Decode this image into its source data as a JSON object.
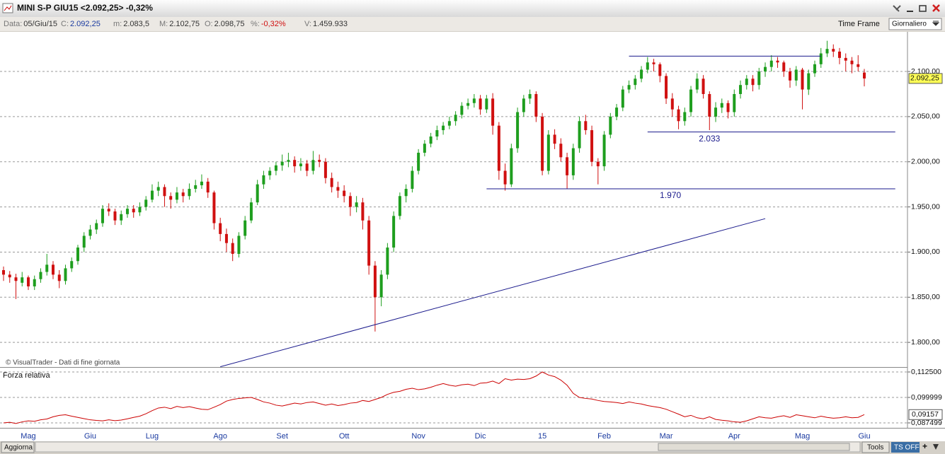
{
  "window": {
    "title": "MINI S-P GIU15 <2.092,25> -0,32%",
    "info": [
      {
        "label": "Data:",
        "value": "05/Giu/15"
      },
      {
        "label": "C:",
        "value": "2.092,25"
      },
      {
        "label": "m:",
        "value": "2.083,5"
      },
      {
        "label": "M:",
        "value": "2.102,75"
      },
      {
        "label": "O:",
        "value": "2.098,75"
      },
      {
        "label": "%:",
        "value": "-0,32%"
      },
      {
        "label": "V:",
        "value": "1.459.933"
      }
    ],
    "time_frame": "Time Frame",
    "timeframe_select": "Giornaliero",
    "watermark": "© VisualTrader - Dati di fine giornata",
    "buttons": {
      "refresh": "Aggiorna",
      "tools": "Tools",
      "ts": "TS OFF"
    }
  },
  "chart_data": [
    {
      "type": "candlestick",
      "categories": [
        null,
        null,
        null,
        null,
        "Mag",
        null,
        null,
        null,
        null,
        null,
        null,
        null,
        null,
        null,
        "Giu",
        null,
        null,
        null,
        null,
        null,
        null,
        null,
        null,
        null,
        "Lug",
        null,
        null,
        null,
        null,
        null,
        null,
        null,
        null,
        null,
        null,
        "Ago",
        null,
        null,
        null,
        null,
        null,
        null,
        null,
        null,
        null,
        "Set",
        null,
        null,
        null,
        null,
        null,
        null,
        null,
        null,
        null,
        "Ott",
        null,
        null,
        null,
        null,
        null,
        null,
        null,
        null,
        null,
        null,
        null,
        "Nov",
        null,
        null,
        null,
        null,
        null,
        null,
        null,
        null,
        null,
        "Dic",
        null,
        null,
        null,
        null,
        null,
        null,
        null,
        null,
        null,
        "15",
        null,
        null,
        null,
        null,
        null,
        null,
        null,
        null,
        null,
        "Feb",
        null,
        null,
        null,
        null,
        null,
        null,
        null,
        null,
        null,
        "Mar",
        null,
        null,
        null,
        null,
        null,
        null,
        null,
        null,
        null,
        null,
        "Apr",
        null,
        null,
        null,
        null,
        null,
        null,
        null,
        null,
        null,
        null,
        "Mag",
        null,
        null,
        null,
        null,
        null,
        null,
        null,
        null,
        null,
        "Giu",
        null
      ],
      "ohlc": [
        [
          1880,
          1884,
          1868,
          1875
        ],
        [
          1875,
          1879,
          1866,
          1872
        ],
        [
          1872,
          1876,
          1848,
          1868
        ],
        [
          1866,
          1878,
          1862,
          1872
        ],
        [
          1872,
          1874,
          1858,
          1862
        ],
        [
          1862,
          1874,
          1858,
          1870
        ],
        [
          1870,
          1882,
          1866,
          1878
        ],
        [
          1878,
          1898,
          1874,
          1886
        ],
        [
          1886,
          1890,
          1870,
          1875
        ],
        [
          1875,
          1880,
          1860,
          1868
        ],
        [
          1868,
          1886,
          1864,
          1882
        ],
        [
          1882,
          1894,
          1878,
          1890
        ],
        [
          1890,
          1908,
          1886,
          1905
        ],
        [
          1905,
          1922,
          1900,
          1918
        ],
        [
          1918,
          1930,
          1914,
          1925
        ],
        [
          1925,
          1936,
          1920,
          1932
        ],
        [
          1932,
          1952,
          1928,
          1948
        ],
        [
          1948,
          1954,
          1940,
          1945
        ],
        [
          1945,
          1948,
          1930,
          1935
        ],
        [
          1935,
          1946,
          1930,
          1942
        ],
        [
          1942,
          1952,
          1938,
          1948
        ],
        [
          1948,
          1952,
          1938,
          1944
        ],
        [
          1944,
          1955,
          1940,
          1950
        ],
        [
          1950,
          1962,
          1946,
          1958
        ],
        [
          1958,
          1975,
          1955,
          1968
        ],
        [
          1968,
          1978,
          1962,
          1972
        ],
        [
          1972,
          1975,
          1950,
          1962
        ],
        [
          1962,
          1966,
          1948,
          1958
        ],
        [
          1958,
          1972,
          1954,
          1966
        ],
        [
          1966,
          1970,
          1955,
          1962
        ],
        [
          1962,
          1976,
          1958,
          1970
        ],
        [
          1970,
          1980,
          1966,
          1974
        ],
        [
          1974,
          1986,
          1970,
          1978
        ],
        [
          1978,
          1982,
          1960,
          1966
        ],
        [
          1966,
          1968,
          1925,
          1932
        ],
        [
          1932,
          1938,
          1912,
          1920
        ],
        [
          1920,
          1926,
          1900,
          1910
        ],
        [
          1910,
          1915,
          1890,
          1898
        ],
        [
          1898,
          1922,
          1894,
          1918
        ],
        [
          1918,
          1940,
          1914,
          1935
        ],
        [
          1935,
          1960,
          1932,
          1955
        ],
        [
          1955,
          1980,
          1952,
          1975
        ],
        [
          1975,
          1990,
          1970,
          1985
        ],
        [
          1985,
          1994,
          1980,
          1990
        ],
        [
          1990,
          2000,
          1985,
          1996
        ],
        [
          1996,
          2008,
          1990,
          2000
        ],
        [
          2000,
          2010,
          1994,
          2002
        ],
        [
          2002,
          2006,
          1988,
          1995
        ],
        [
          1995,
          2004,
          1990,
          1998
        ],
        [
          1998,
          2002,
          1984,
          1990
        ],
        [
          1990,
          2012,
          1986,
          2002
        ],
        [
          2002,
          2008,
          1994,
          2000
        ],
        [
          2000,
          2004,
          1976,
          1982
        ],
        [
          1982,
          1988,
          1966,
          1972
        ],
        [
          1972,
          1978,
          1960,
          1968
        ],
        [
          1968,
          1974,
          1955,
          1962
        ],
        [
          1962,
          1966,
          1940,
          1950
        ],
        [
          1950,
          1962,
          1944,
          1955
        ],
        [
          1955,
          1960,
          1925,
          1935
        ],
        [
          1935,
          1940,
          1875,
          1885
        ],
        [
          1885,
          1890,
          1812,
          1850
        ],
        [
          1850,
          1880,
          1840,
          1875
        ],
        [
          1875,
          1910,
          1870,
          1905
        ],
        [
          1905,
          1945,
          1900,
          1940
        ],
        [
          1940,
          1966,
          1936,
          1962
        ],
        [
          1962,
          1975,
          1955,
          1970
        ],
        [
          1970,
          1995,
          1966,
          1990
        ],
        [
          1990,
          2014,
          1986,
          2010
        ],
        [
          2010,
          2024,
          2006,
          2020
        ],
        [
          2020,
          2032,
          2016,
          2028
        ],
        [
          2028,
          2040,
          2024,
          2035
        ],
        [
          2035,
          2044,
          2030,
          2040
        ],
        [
          2040,
          2050,
          2036,
          2045
        ],
        [
          2045,
          2056,
          2040,
          2052
        ],
        [
          2052,
          2066,
          2048,
          2062
        ],
        [
          2062,
          2070,
          2058,
          2065
        ],
        [
          2065,
          2075,
          2060,
          2070
        ],
        [
          2070,
          2074,
          2052,
          2058
        ],
        [
          2058,
          2074,
          2054,
          2070
        ],
        [
          2070,
          2076,
          2030,
          2040
        ],
        [
          2040,
          2044,
          1980,
          1990
        ],
        [
          1990,
          1998,
          1968,
          1975
        ],
        [
          1975,
          2020,
          1972,
          2015
        ],
        [
          2015,
          2060,
          2010,
          2055
        ],
        [
          2055,
          2074,
          2050,
          2070
        ],
        [
          2070,
          2080,
          2064,
          2075
        ],
        [
          2075,
          2078,
          2044,
          2050
        ],
        [
          2050,
          2054,
          1985,
          1990
        ],
        [
          1990,
          2035,
          1986,
          2030
        ],
        [
          2030,
          2036,
          2014,
          2020
        ],
        [
          2020,
          2026,
          2000,
          2005
        ],
        [
          2005,
          2010,
          1970,
          1985
        ],
        [
          1985,
          2020,
          1980,
          2015
        ],
        [
          2015,
          2050,
          2010,
          2045
        ],
        [
          2045,
          2052,
          2030,
          2035
        ],
        [
          2035,
          2040,
          1995,
          2000
        ],
        [
          2000,
          2004,
          1975,
          1995
        ],
        [
          1995,
          2034,
          1990,
          2030
        ],
        [
          2030,
          2054,
          2026,
          2050
        ],
        [
          2050,
          2064,
          2046,
          2060
        ],
        [
          2060,
          2084,
          2056,
          2080
        ],
        [
          2080,
          2090,
          2076,
          2085
        ],
        [
          2085,
          2096,
          2080,
          2092
        ],
        [
          2092,
          2106,
          2088,
          2102
        ],
        [
          2102,
          2116,
          2098,
          2110
        ],
        [
          2110,
          2114,
          2100,
          2108
        ],
        [
          2108,
          2110,
          2088,
          2095
        ],
        [
          2095,
          2098,
          2064,
          2070
        ],
        [
          2070,
          2076,
          2050,
          2058
        ],
        [
          2058,
          2062,
          2036,
          2045
        ],
        [
          2045,
          2060,
          2040,
          2055
        ],
        [
          2055,
          2084,
          2050,
          2080
        ],
        [
          2080,
          2098,
          2076,
          2092
        ],
        [
          2092,
          2096,
          2070,
          2075
        ],
        [
          2075,
          2078,
          2035,
          2050
        ],
        [
          2050,
          2066,
          2044,
          2060
        ],
        [
          2060,
          2070,
          2054,
          2065
        ],
        [
          2065,
          2068,
          2048,
          2055
        ],
        [
          2055,
          2080,
          2050,
          2075
        ],
        [
          2075,
          2090,
          2070,
          2085
        ],
        [
          2085,
          2096,
          2080,
          2092
        ],
        [
          2092,
          2096,
          2078,
          2085
        ],
        [
          2085,
          2104,
          2080,
          2100
        ],
        [
          2100,
          2110,
          2094,
          2105
        ],
        [
          2105,
          2118,
          2100,
          2112
        ],
        [
          2112,
          2116,
          2104,
          2110
        ],
        [
          2110,
          2112,
          2094,
          2100
        ],
        [
          2100,
          2104,
          2082,
          2090
        ],
        [
          2090,
          2106,
          2084,
          2102
        ],
        [
          2102,
          2104,
          2058,
          2080
        ],
        [
          2080,
          2102,
          2074,
          2098
        ],
        [
          2098,
          2112,
          2094,
          2108
        ],
        [
          2108,
          2126,
          2104,
          2120
        ],
        [
          2120,
          2134,
          2116,
          2125
        ],
        [
          2125,
          2130,
          2116,
          2122
        ],
        [
          2122,
          2126,
          2108,
          2115
        ],
        [
          2115,
          2120,
          2100,
          2112
        ],
        [
          2112,
          2116,
          2098,
          2108
        ],
        [
          2108,
          2118,
          2100,
          2105
        ],
        [
          2098.75,
          2102.75,
          2083.5,
          2092.25
        ]
      ],
      "up_color": "#1e9e1e",
      "down_color": "#d01010",
      "ylim": [
        1772.7,
        2143.9
      ],
      "yticks": [
        {
          "value": 1800,
          "label": "1.800,00"
        },
        {
          "value": 1850,
          "label": "1.850,00"
        },
        {
          "value": 1900,
          "label": "1.900,00"
        },
        {
          "value": 1950,
          "label": "1.950,00"
        },
        {
          "value": 2000,
          "label": "2.000,00"
        },
        {
          "value": 2050,
          "label": "2.050,00"
        },
        {
          "value": 2100,
          "label": "2.100,00"
        }
      ],
      "grid": true,
      "last_label": "2.092,25",
      "level_lines": [
        {
          "value": 2117,
          "from": 101,
          "to": 132
        },
        {
          "value": 2033,
          "from": 104,
          "to": 144,
          "label": "2.033"
        },
        {
          "value": 1970,
          "from": 78,
          "to": 144,
          "label": "1.970"
        }
      ],
      "trend_lines": [
        {
          "x": [
            35,
            123
          ],
          "y": [
            1773,
            1937
          ]
        }
      ],
      "line_color": "#1a1a8c"
    },
    {
      "type": "line",
      "title": "Forza relativa",
      "values": [
        0.0875,
        0.0878,
        0.0872,
        0.088,
        0.0885,
        0.0883,
        0.089,
        0.0894,
        0.0905,
        0.0912,
        0.0915,
        0.0908,
        0.0902,
        0.0896,
        0.089,
        0.0887,
        0.0885,
        0.089,
        0.0886,
        0.0889,
        0.0895,
        0.0902,
        0.0908,
        0.092,
        0.0935,
        0.0948,
        0.0952,
        0.0945,
        0.0956,
        0.095,
        0.0955,
        0.0948,
        0.0942,
        0.094,
        0.0952,
        0.0965,
        0.0982,
        0.099,
        0.0995,
        0.0998,
        0.1,
        0.099,
        0.0978,
        0.0972,
        0.0962,
        0.0958,
        0.0965,
        0.0972,
        0.0968,
        0.0975,
        0.0978,
        0.097,
        0.0962,
        0.0968,
        0.096,
        0.0965,
        0.0972,
        0.0975,
        0.0985,
        0.098,
        0.099,
        0.1,
        0.1015,
        0.1025,
        0.103,
        0.104,
        0.1045,
        0.1038,
        0.1042,
        0.105,
        0.106,
        0.1068,
        0.106,
        0.1055,
        0.1062,
        0.1065,
        0.1058,
        0.107,
        0.1072,
        0.108,
        0.1068,
        0.1092,
        0.1085,
        0.109,
        0.1088,
        0.1092,
        0.1105,
        0.1125,
        0.111,
        0.1102,
        0.1085,
        0.106,
        0.102,
        0.1,
        0.0995,
        0.0992,
        0.0985,
        0.098,
        0.0978,
        0.0975,
        0.097,
        0.0978,
        0.0972,
        0.0968,
        0.096,
        0.0955,
        0.095,
        0.0942,
        0.093,
        0.0918,
        0.0905,
        0.0912,
        0.09,
        0.0895,
        0.0905,
        0.0892,
        0.0888,
        0.0885,
        0.088,
        0.0878,
        0.0885,
        0.0895,
        0.0905,
        0.09,
        0.0898,
        0.0905,
        0.091,
        0.0902,
        0.0915,
        0.091,
        0.0905,
        0.09,
        0.0908,
        0.0902,
        0.0898,
        0.09,
        0.0905,
        0.09,
        0.0902,
        0.09157
      ],
      "color": "#cc0000",
      "ylim": [
        0.08507,
        0.11458
      ],
      "yticks": [
        {
          "value": 0.1125,
          "label": "0,112500"
        },
        {
          "value": 0.099999,
          "label": "0,099999"
        },
        {
          "value": 0.087499,
          "label": "0,087499"
        }
      ],
      "grid": true,
      "last_label": "0,09157"
    }
  ]
}
